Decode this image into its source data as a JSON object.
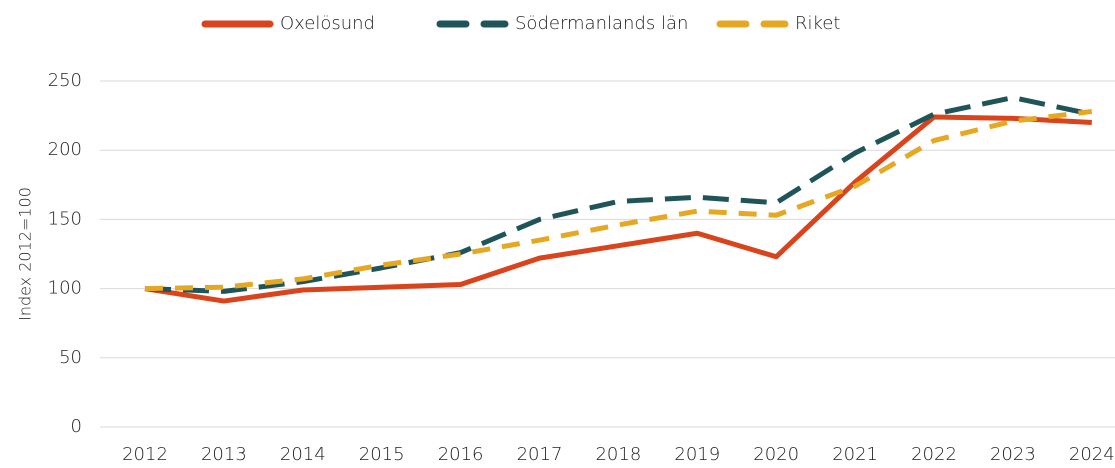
{
  "chart_data": {
    "type": "line",
    "y_label": "Index 2012=100",
    "categories": [
      "2012",
      "2013",
      "2014",
      "2015",
      "2016",
      "2017",
      "2018",
      "2019",
      "2020",
      "2021",
      "2022",
      "2023",
      "2024"
    ],
    "series": [
      {
        "name": "Oxelösund",
        "color": "#d9441c",
        "style": "solid",
        "values": [
          100,
          91,
          99,
          101,
          103,
          122,
          131,
          140,
          123,
          177,
          224,
          223,
          220
        ]
      },
      {
        "name": "Södermanlands län",
        "color": "#1f5459",
        "style": "long-dash",
        "values": [
          100,
          98,
          105,
          115,
          126,
          150,
          163,
          166,
          162,
          198,
          226,
          238,
          226
        ]
      },
      {
        "name": "Riket",
        "color": "#e6a823",
        "style": "dash",
        "values": [
          100,
          101,
          107,
          117,
          125,
          135,
          146,
          156,
          153,
          174,
          207,
          221,
          228
        ]
      }
    ],
    "ylim": [
      0,
      250
    ],
    "yticks": [
      0,
      50,
      100,
      150,
      200,
      250
    ],
    "grid": true,
    "legend": "top"
  }
}
